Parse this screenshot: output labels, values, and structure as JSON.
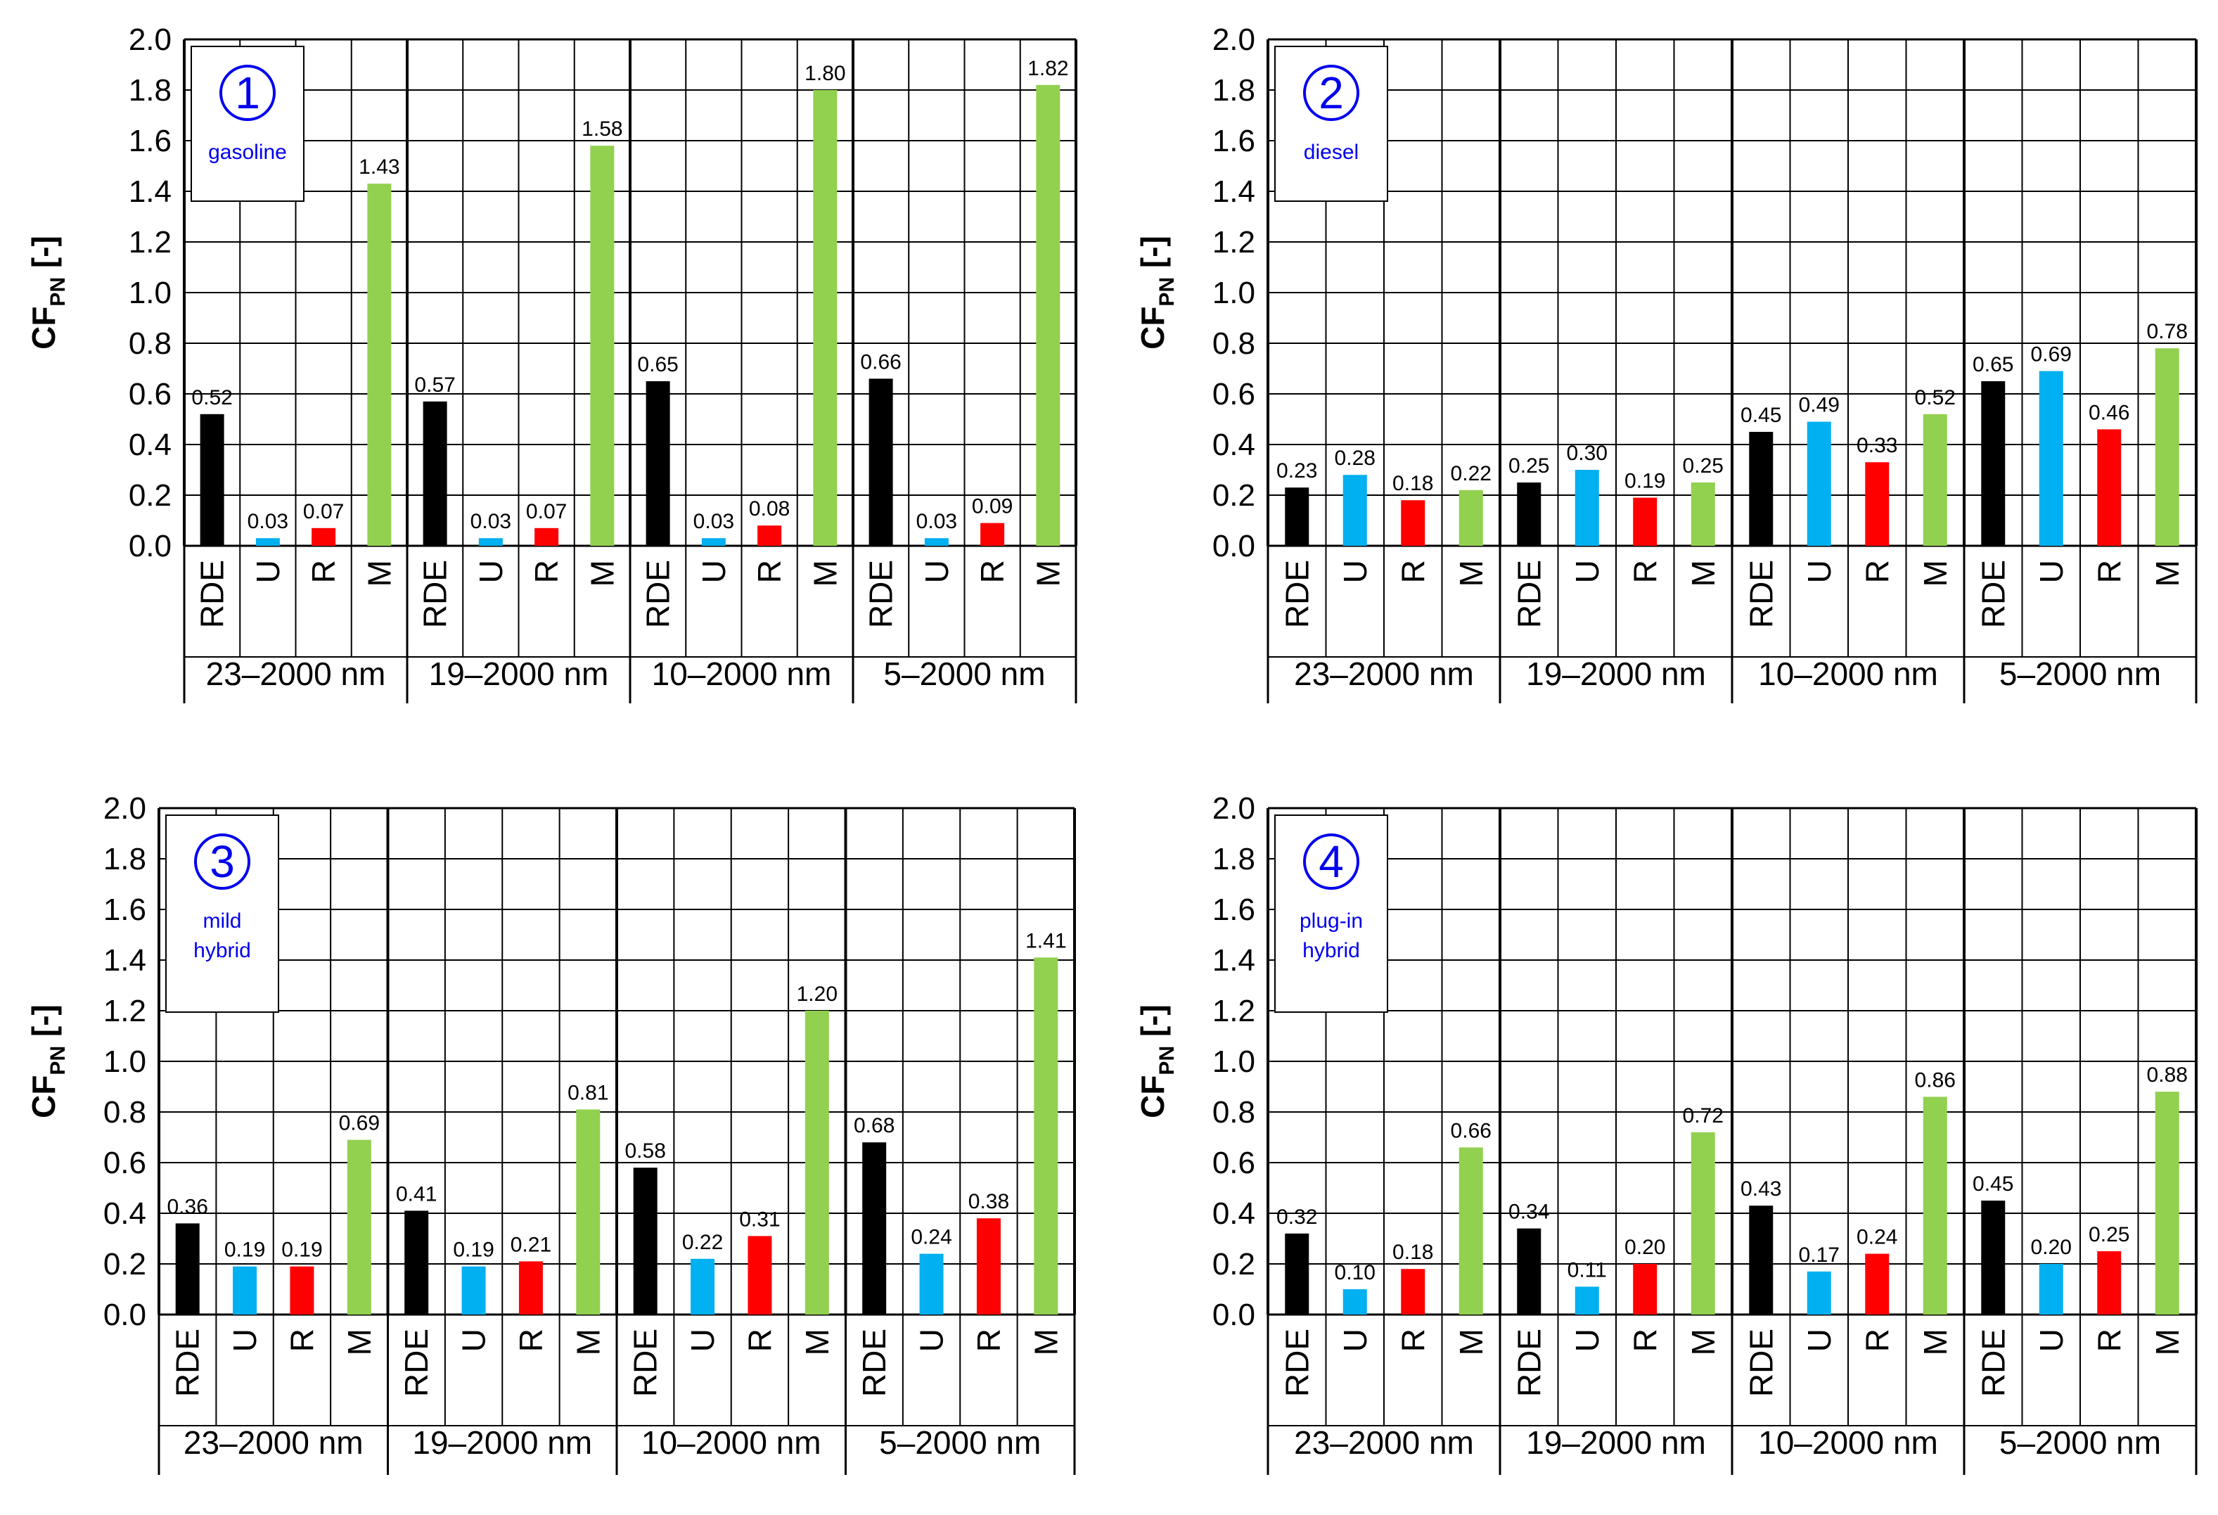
{
  "figure": {
    "colors": {
      "RDE": "#000000",
      "U": "#00b0f0",
      "R": "#ff0000",
      "M": "#92d050",
      "legend_text": "#0000ee"
    }
  },
  "chart_data": [
    {
      "type": "bar",
      "panel_number": "1",
      "legend_lines": [
        "gasoline"
      ],
      "ylabel": "CF",
      "ylabel_sub": "PN",
      "ylabel_unit": " [-]",
      "ylim": [
        0.0,
        2.0
      ],
      "yticks": [
        "0.0",
        "0.2",
        "0.4",
        "0.6",
        "0.8",
        "1.0",
        "1.2",
        "1.4",
        "1.6",
        "1.8",
        "2.0"
      ],
      "categories": [
        "RDE",
        "U",
        "R",
        "M"
      ],
      "groups": [
        {
          "label": "23–2000 nm",
          "values": [
            0.52,
            0.03,
            0.07,
            1.43
          ],
          "labels": [
            "0.52",
            "0.03",
            "0.07",
            "1.43"
          ]
        },
        {
          "label": "19–2000 nm",
          "values": [
            0.57,
            0.03,
            0.07,
            1.58
          ],
          "labels": [
            "0.57",
            "0.03",
            "0.07",
            "1.58"
          ]
        },
        {
          "label": "10–2000 nm",
          "values": [
            0.65,
            0.03,
            0.08,
            1.8
          ],
          "labels": [
            "0.65",
            "0.03",
            "0.08",
            "1.80"
          ]
        },
        {
          "label": "5–2000 nm",
          "values": [
            0.66,
            0.03,
            0.09,
            1.82
          ],
          "labels": [
            "0.66",
            "0.03",
            "0.09",
            "1.82"
          ]
        }
      ]
    },
    {
      "type": "bar",
      "panel_number": "2",
      "legend_lines": [
        "diesel"
      ],
      "ylabel": "CF",
      "ylabel_sub": "PN",
      "ylabel_unit": " [-]",
      "ylim": [
        0.0,
        2.0
      ],
      "yticks": [
        "0.0",
        "0.2",
        "0.4",
        "0.6",
        "0.8",
        "1.0",
        "1.2",
        "1.4",
        "1.6",
        "1.8",
        "2.0"
      ],
      "categories": [
        "RDE",
        "U",
        "R",
        "M"
      ],
      "groups": [
        {
          "label": "23–2000 nm",
          "values": [
            0.23,
            0.28,
            0.18,
            0.22
          ],
          "labels": [
            "0.23",
            "0.28",
            "0.18",
            "0.22"
          ]
        },
        {
          "label": "19–2000 nm",
          "values": [
            0.25,
            0.3,
            0.19,
            0.25
          ],
          "labels": [
            "0.25",
            "0.30",
            "0.19",
            "0.25"
          ]
        },
        {
          "label": "10–2000 nm",
          "values": [
            0.45,
            0.49,
            0.33,
            0.52
          ],
          "labels": [
            "0.45",
            "0.49",
            "0.33",
            "0.52"
          ]
        },
        {
          "label": "5–2000 nm",
          "values": [
            0.65,
            0.69,
            0.46,
            0.78
          ],
          "labels": [
            "0.65",
            "0.69",
            "0.46",
            "0.78"
          ]
        }
      ]
    },
    {
      "type": "bar",
      "panel_number": "3",
      "legend_lines": [
        "mild",
        "hybrid"
      ],
      "ylabel": "CF",
      "ylabel_sub": "PN",
      "ylabel_unit": " [-]",
      "ylim": [
        0.0,
        2.0
      ],
      "yticks": [
        "0.0",
        "0.2",
        "0.4",
        "0.6",
        "0.8",
        "1.0",
        "1.2",
        "1.4",
        "1.6",
        "1.8",
        "2.0"
      ],
      "categories": [
        "RDE",
        "U",
        "R",
        "M"
      ],
      "groups": [
        {
          "label": "23–2000 nm",
          "values": [
            0.36,
            0.19,
            0.19,
            0.69
          ],
          "labels": [
            "0.36",
            "0.19",
            "0.19",
            "0.69"
          ]
        },
        {
          "label": "19–2000 nm",
          "values": [
            0.41,
            0.19,
            0.21,
            0.81
          ],
          "labels": [
            "0.41",
            "0.19",
            "0.21",
            "0.81"
          ]
        },
        {
          "label": "10–2000 nm",
          "values": [
            0.58,
            0.22,
            0.31,
            1.2
          ],
          "labels": [
            "0.58",
            "0.22",
            "0.31",
            "1.20"
          ]
        },
        {
          "label": "5–2000 nm",
          "values": [
            0.68,
            0.24,
            0.38,
            1.41
          ],
          "labels": [
            "0.68",
            "0.24",
            "0.38",
            "1.41"
          ]
        }
      ]
    },
    {
      "type": "bar",
      "panel_number": "4",
      "legend_lines": [
        "plug-in",
        "hybrid"
      ],
      "ylabel": "CF",
      "ylabel_sub": "PN",
      "ylabel_unit": " [-]",
      "ylim": [
        0.0,
        2.0
      ],
      "yticks": [
        "0.0",
        "0.2",
        "0.4",
        "0.6",
        "0.8",
        "1.0",
        "1.2",
        "1.4",
        "1.6",
        "1.8",
        "2.0"
      ],
      "categories": [
        "RDE",
        "U",
        "R",
        "M"
      ],
      "groups": [
        {
          "label": "23–2000 nm",
          "values": [
            0.32,
            0.1,
            0.18,
            0.66
          ],
          "labels": [
            "0.32",
            "0.10",
            "0.18",
            "0.66"
          ]
        },
        {
          "label": "19–2000 nm",
          "values": [
            0.34,
            0.11,
            0.2,
            0.72
          ],
          "labels": [
            "0.34",
            "0.11",
            "0.20",
            "0.72"
          ]
        },
        {
          "label": "10–2000 nm",
          "values": [
            0.43,
            0.17,
            0.24,
            0.86
          ],
          "labels": [
            "0.43",
            "0.17",
            "0.24",
            "0.86"
          ]
        },
        {
          "label": "5–2000 nm",
          "values": [
            0.45,
            0.2,
            0.25,
            0.88
          ],
          "labels": [
            "0.45",
            "0.20",
            "0.25",
            "0.88"
          ]
        }
      ]
    }
  ]
}
